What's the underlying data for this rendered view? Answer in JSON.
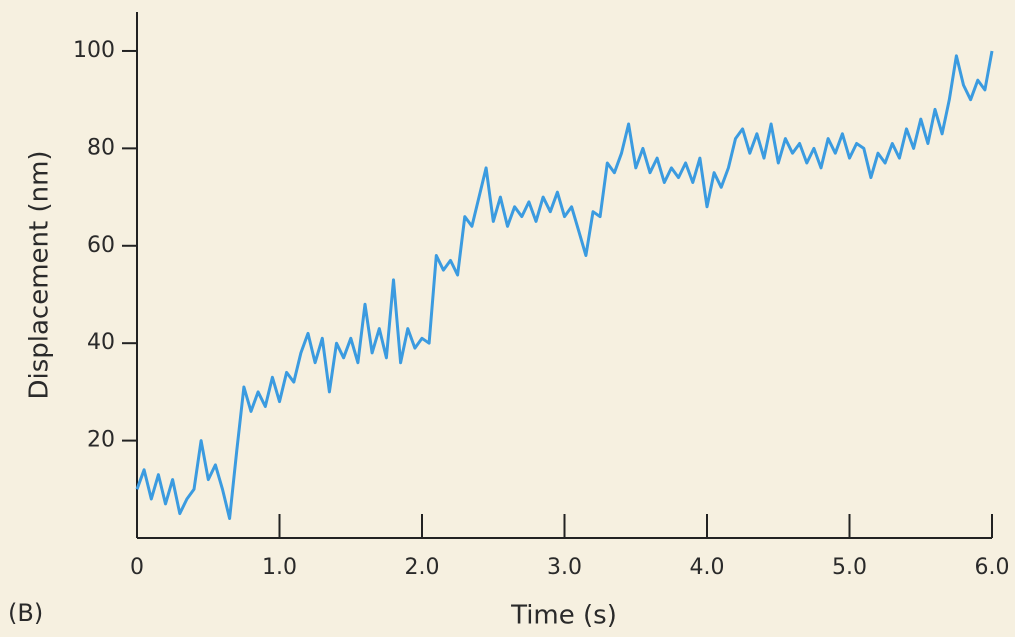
{
  "chart_data": {
    "type": "line",
    "xlabel": "Time (s)",
    "ylabel": "Displacement (nm)",
    "annotation": "(B)",
    "color": "#3b9be0",
    "xlim": [
      0,
      6
    ],
    "ylim": [
      0,
      108
    ],
    "xticks": [
      0,
      {
        "value": 1,
        "label": "1.0"
      },
      {
        "value": 2,
        "label": "2.0"
      },
      {
        "value": 3,
        "label": "3.0"
      },
      {
        "value": 4,
        "label": "4.0"
      },
      {
        "value": 5,
        "label": "5.0"
      },
      {
        "value": 6,
        "label": "6.0"
      }
    ],
    "yticks": [
      20,
      40,
      60,
      80,
      100
    ],
    "x": [
      0,
      0.05,
      0.1,
      0.15,
      0.2,
      0.25,
      0.3,
      0.35,
      0.4,
      0.45,
      0.5,
      0.55,
      0.6,
      0.65,
      0.7,
      0.75,
      0.8,
      0.85,
      0.9,
      0.95,
      1,
      1.05,
      1.1,
      1.15,
      1.2,
      1.25,
      1.3,
      1.35,
      1.4,
      1.45,
      1.5,
      1.55,
      1.6,
      1.65,
      1.7,
      1.75,
      1.8,
      1.85,
      1.9,
      1.95,
      2,
      2.05,
      2.1,
      2.15,
      2.2,
      2.25,
      2.3,
      2.35,
      2.4,
      2.45,
      2.5,
      2.55,
      2.6,
      2.65,
      2.7,
      2.75,
      2.8,
      2.85,
      2.9,
      2.95,
      3,
      3.05,
      3.1,
      3.15,
      3.2,
      3.25,
      3.3,
      3.35,
      3.4,
      3.45,
      3.5,
      3.55,
      3.6,
      3.65,
      3.7,
      3.75,
      3.8,
      3.85,
      3.9,
      3.95,
      4,
      4.05,
      4.1,
      4.15,
      4.2,
      4.25,
      4.3,
      4.35,
      4.4,
      4.45,
      4.5,
      4.55,
      4.6,
      4.65,
      4.7,
      4.75,
      4.8,
      4.85,
      4.9,
      4.95,
      5,
      5.05,
      5.1,
      5.15,
      5.2,
      5.25,
      5.3,
      5.35,
      5.4,
      5.45,
      5.5,
      5.55,
      5.6,
      5.65,
      5.7,
      5.75,
      5.8,
      5.85,
      5.9,
      5.95,
      6
    ],
    "values": [
      10,
      14,
      8,
      13,
      7,
      12,
      5,
      8,
      10,
      20,
      12,
      15,
      10,
      4,
      18,
      31,
      26,
      30,
      27,
      33,
      28,
      34,
      32,
      38,
      42,
      36,
      41,
      30,
      40,
      37,
      41,
      36,
      48,
      38,
      43,
      37,
      53,
      36,
      43,
      39,
      41,
      40,
      58,
      55,
      57,
      54,
      66,
      64,
      70,
      76,
      65,
      70,
      64,
      68,
      66,
      69,
      65,
      70,
      67,
      71,
      66,
      68,
      63,
      58,
      67,
      66,
      77,
      75,
      79,
      85,
      76,
      80,
      75,
      78,
      73,
      76,
      74,
      77,
      73,
      78,
      68,
      75,
      72,
      76,
      82,
      84,
      79,
      83,
      78,
      85,
      77,
      82,
      79,
      81,
      77,
      80,
      76,
      82,
      79,
      83,
      78,
      81,
      80,
      74,
      79,
      77,
      81,
      78,
      84,
      80,
      86,
      81,
      88,
      83,
      90,
      99,
      93,
      90,
      94,
      92,
      100
    ]
  }
}
